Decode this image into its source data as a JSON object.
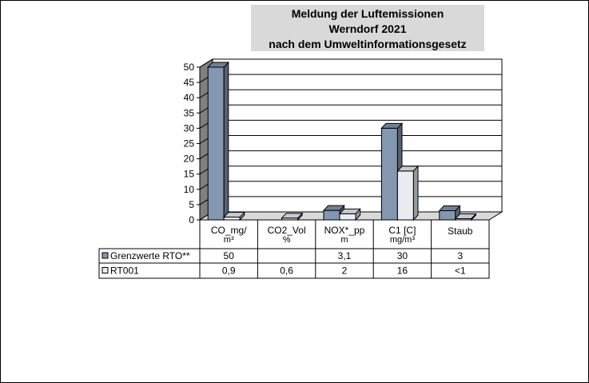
{
  "chart_data": {
    "type": "bar",
    "title_lines": [
      "Meldung der Luftemissionen",
      "Werndorf 2021",
      "nach dem Umweltinformationsgesetz"
    ],
    "categories": [
      [
        "CO_mg/",
        "m³"
      ],
      [
        "CO2_Vol",
        "%"
      ],
      [
        "NOX*_pp",
        "m"
      ],
      [
        "C1 [C]",
        "mg/m³"
      ],
      [
        "Staub"
      ]
    ],
    "ylim": [
      0,
      50
    ],
    "yticks": [
      "0",
      "5",
      "10",
      "15",
      "20",
      "25",
      "30",
      "35",
      "40",
      "45",
      "50"
    ],
    "grid": true,
    "legend_placement": "data-table",
    "series": [
      {
        "name": "Grenzwerte RTO**",
        "color": "#8496b0",
        "values": [
          50,
          null,
          3.1,
          30,
          3
        ],
        "labels": [
          "50",
          "",
          "3,1",
          "30",
          "3"
        ]
      },
      {
        "name": "RT001",
        "color": "#e9edf2",
        "values": [
          0.9,
          0.6,
          2,
          16,
          0.3
        ],
        "labels": [
          "0,9",
          "0,6",
          "2",
          "16",
          "<1"
        ]
      }
    ]
  }
}
